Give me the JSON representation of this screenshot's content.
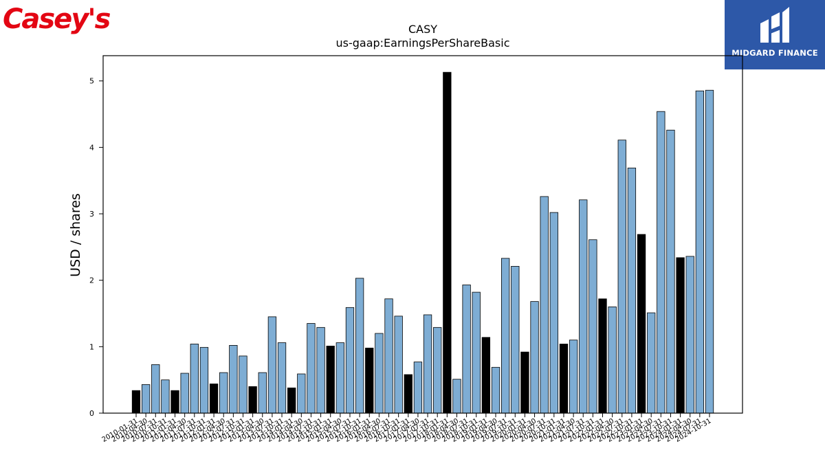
{
  "logos": {
    "left_text": "Casey's",
    "left_color": "#e30613",
    "right_text": "MIDGARD FINANCE",
    "right_bg": "#2d58a8"
  },
  "chart_data": {
    "type": "bar",
    "title": "CASY",
    "subtitle": "us-gaap:EarningsPerShareBasic",
    "ylabel": "USD / shares",
    "xlabel": "",
    "ylim": [
      0,
      5.38
    ],
    "yticks": [
      0,
      1,
      2,
      3,
      4,
      5
    ],
    "grid": false,
    "legend": "none",
    "colors": {
      "quarter": "#7eadd4",
      "annual": "#000000"
    },
    "categories": [
      "2010-01-31",
      "2010-04-30",
      "2010-07-31",
      "2010-10-31",
      "2011-01-31",
      "2011-04-30",
      "2011-07-31",
      "2011-10-31",
      "2012-01-31",
      "2012-04-30",
      "2012-07-31",
      "2012-10-31",
      "2013-01-31",
      "2013-04-30",
      "2013-07-31",
      "2013-10-31",
      "2014-01-31",
      "2014-04-30",
      "2014-07-31",
      "2014-10-31",
      "2015-01-31",
      "2015-04-30",
      "2015-07-31",
      "2015-10-31",
      "2016-01-31",
      "2016-04-30",
      "2016-07-31",
      "2016-10-31",
      "2017-01-31",
      "2017-04-30",
      "2017-07-31",
      "2017-10-31",
      "2018-01-31",
      "2018-04-30",
      "2018-07-31",
      "2018-10-31",
      "2019-01-31",
      "2019-04-30",
      "2019-07-31",
      "2019-10-31",
      "2020-01-31",
      "2020-04-30",
      "2020-07-31",
      "2020-10-31",
      "2021-01-31",
      "2021-04-30",
      "2021-07-31",
      "2021-10-31",
      "2022-01-31",
      "2022-04-30",
      "2022-07-31",
      "2022-10-31",
      "2023-01-31",
      "2023-04-30",
      "2023-07-31",
      "2023-10-31",
      "2024-01-31",
      "2024-04-30",
      "2024-07-31",
      "2024-10-31"
    ],
    "values": [
      0.34,
      0.43,
      0.73,
      0.5,
      0.34,
      0.6,
      1.04,
      0.99,
      0.44,
      0.61,
      1.02,
      0.86,
      0.4,
      0.61,
      1.45,
      1.06,
      0.38,
      0.59,
      1.35,
      1.29,
      1.01,
      1.06,
      1.59,
      2.03,
      0.98,
      1.2,
      1.72,
      1.46,
      0.58,
      0.77,
      1.48,
      1.29,
      5.13,
      0.51,
      1.93,
      1.82,
      1.14,
      0.69,
      2.33,
      2.21,
      0.92,
      1.68,
      3.26,
      3.02,
      1.04,
      1.1,
      3.21,
      2.61,
      1.72,
      1.6,
      4.11,
      3.69,
      2.69,
      1.51,
      4.54,
      4.26,
      2.34,
      2.36,
      4.85,
      4.86
    ],
    "series_kind": [
      "annual",
      "quarter",
      "quarter",
      "quarter",
      "annual",
      "quarter",
      "quarter",
      "quarter",
      "annual",
      "quarter",
      "quarter",
      "quarter",
      "annual",
      "quarter",
      "quarter",
      "quarter",
      "annual",
      "quarter",
      "quarter",
      "quarter",
      "annual",
      "quarter",
      "quarter",
      "quarter",
      "annual",
      "quarter",
      "quarter",
      "quarter",
      "annual",
      "quarter",
      "quarter",
      "quarter",
      "annual",
      "quarter",
      "quarter",
      "quarter",
      "annual",
      "quarter",
      "quarter",
      "quarter",
      "annual",
      "quarter",
      "quarter",
      "quarter",
      "annual",
      "quarter",
      "quarter",
      "quarter",
      "annual",
      "quarter",
      "quarter",
      "quarter",
      "annual",
      "quarter",
      "quarter",
      "quarter",
      "annual",
      "quarter",
      "quarter",
      "quarter"
    ]
  }
}
